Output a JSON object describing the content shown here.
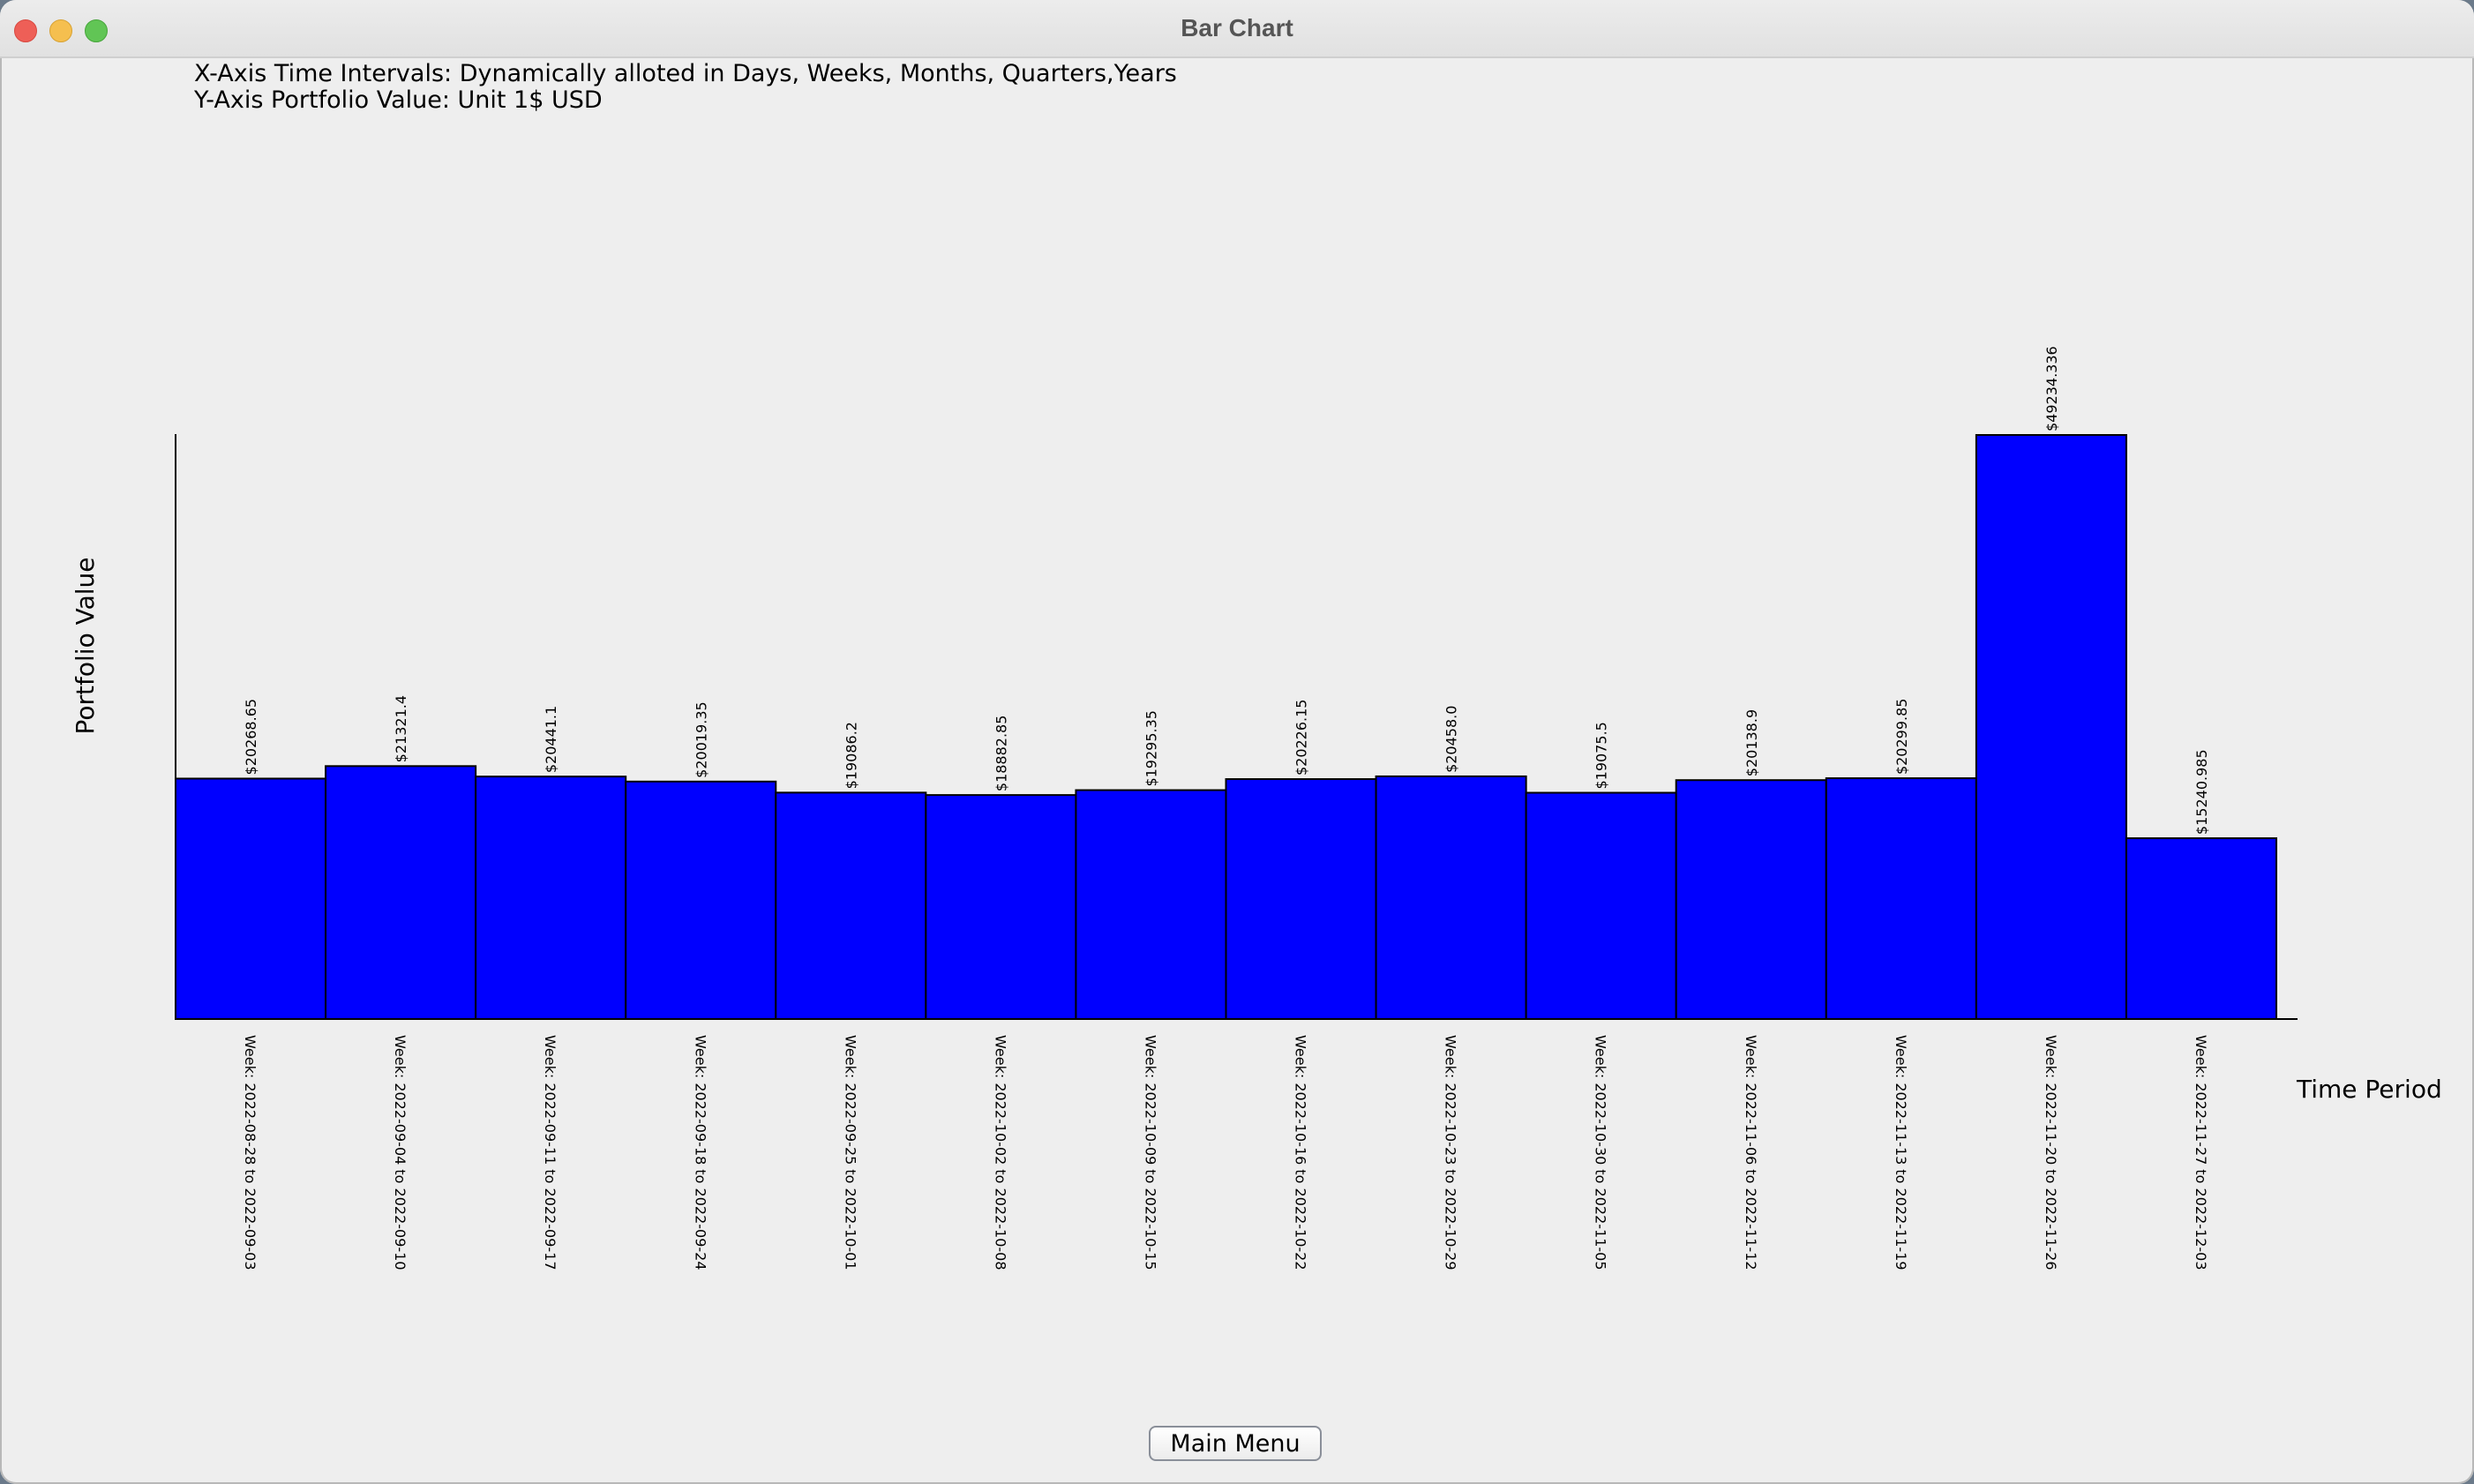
{
  "window": {
    "title": "Bar Chart"
  },
  "info": {
    "line1": "X-Axis Time Intervals: Dynamically alloted in Days, Weeks, Months, Quarters,Years",
    "line2": "Y-Axis Portfolio Value: Unit 1$ USD"
  },
  "buttons": {
    "main_menu": "Main Menu"
  },
  "colors": {
    "bar": "#0000ff",
    "bar_border": "#000000",
    "background": "#eeeeee"
  },
  "chart_data": {
    "type": "bar",
    "xlabel": "Time Period",
    "ylabel": "Portfolio Value",
    "categories": [
      "Week: 2022-08-28 to 2022-09-03",
      "Week: 2022-09-04 to 2022-09-10",
      "Week: 2022-09-11 to 2022-09-17",
      "Week: 2022-09-18 to 2022-09-24",
      "Week: 2022-09-25 to 2022-10-01",
      "Week: 2022-10-02 to 2022-10-08",
      "Week: 2022-10-09 to 2022-10-15",
      "Week: 2022-10-16 to 2022-10-22",
      "Week: 2022-10-23 to 2022-10-29",
      "Week: 2022-10-30 to 2022-11-05",
      "Week: 2022-11-06 to 2022-11-12",
      "Week: 2022-11-13 to 2022-11-19",
      "Week: 2022-11-20 to 2022-11-26",
      "Week: 2022-11-27 to 2022-12-03"
    ],
    "values": [
      20268.65,
      21321.4,
      20441.1,
      20019.35,
      19086.2,
      18882.85,
      19295.35,
      20226.15,
      20458.0,
      19075.5,
      20138.9,
      20299.85,
      49234.336,
      15240.985
    ],
    "value_labels": [
      "$20268.65",
      "$21321.4",
      "$20441.1",
      "$20019.35",
      "$19086.2",
      "$18882.85",
      "$19295.35",
      "$20226.15",
      "$20458.0",
      "$19075.5",
      "$20138.9",
      "$20299.85",
      "$49234.336",
      "$15240.985"
    ],
    "ylim": [
      0,
      49234.336
    ],
    "grid": false,
    "legend": "none"
  }
}
